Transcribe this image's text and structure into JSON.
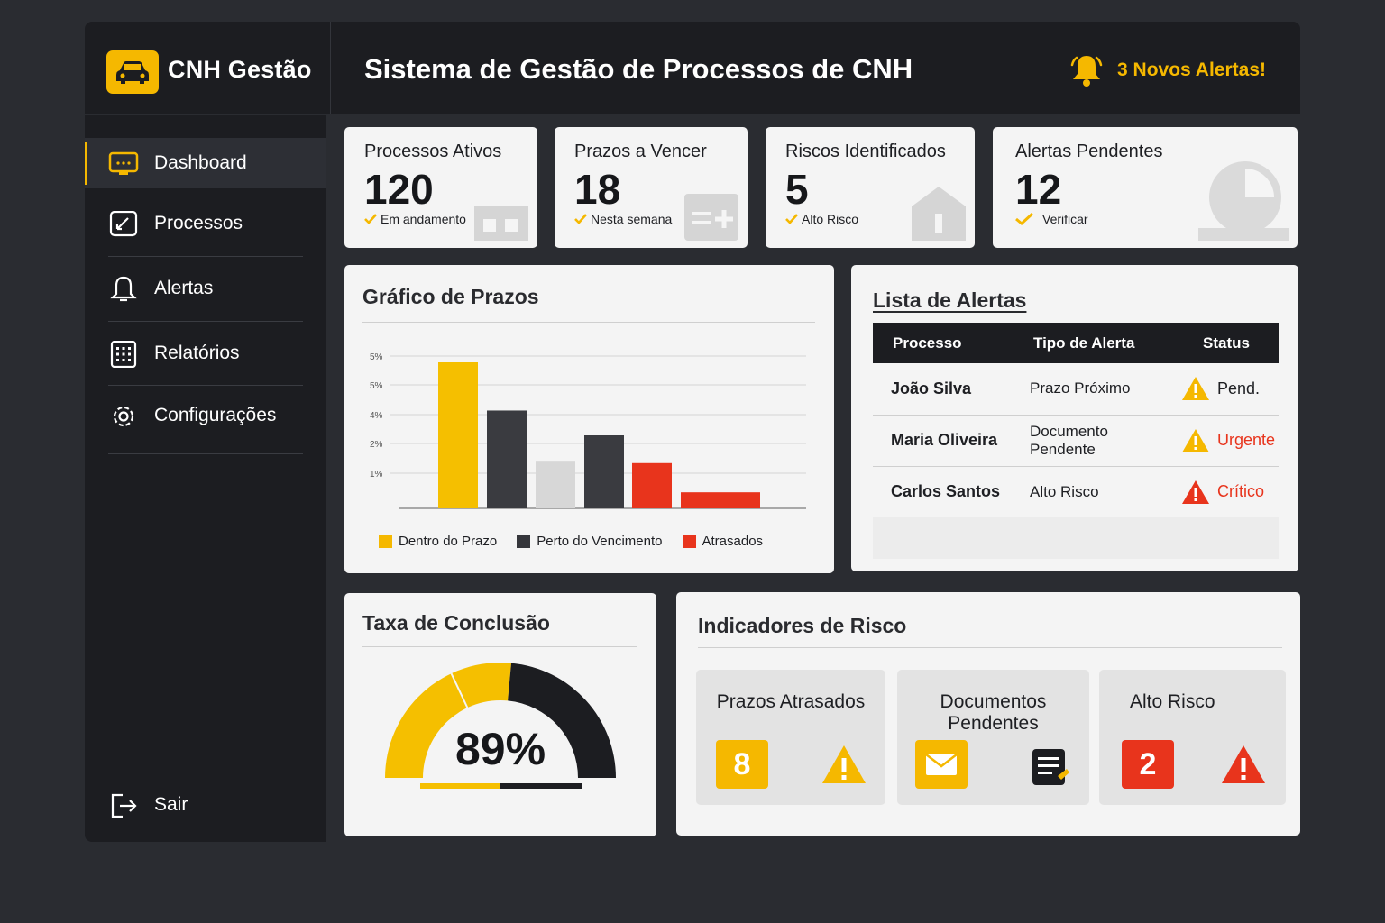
{
  "brand": "CNH Gestão",
  "header": {
    "title": "Sistema de Gestão de Processos de CNH",
    "alerts": "3 Novos Alertas!"
  },
  "sidebar": {
    "items": [
      {
        "label": "Dashboard",
        "icon": "dashboard-icon",
        "active": true
      },
      {
        "label": "Processos",
        "icon": "processos-icon"
      },
      {
        "label": "Alertas",
        "icon": "bell-icon"
      },
      {
        "label": "Relatórios",
        "icon": "reports-icon"
      },
      {
        "label": "Configurações",
        "icon": "gear-icon"
      }
    ],
    "logout": "Sair"
  },
  "stats": [
    {
      "title": "Processos Ativos",
      "value": "120",
      "sub": "Em andamento"
    },
    {
      "title": "Prazos a Vencer",
      "value": "18",
      "sub": "Nesta semana"
    },
    {
      "title": "Riscos Identificados",
      "value": "5",
      "sub": "Alto Risco"
    },
    {
      "title": "Alertas Pendentes",
      "value": "12",
      "sub": "Verificar"
    }
  ],
  "chart_panel": {
    "title": "Gráfico de Prazos"
  },
  "chart_data": {
    "type": "bar",
    "title": "Gráfico de Prazos",
    "y_ticks": [
      "5%",
      "5%",
      "4%",
      "2%",
      "1%"
    ],
    "bars": [
      {
        "series": "Dentro do Prazo",
        "value": 100
      },
      {
        "series": "Perto do Vencimento",
        "value": 67
      },
      {
        "series": "Dentro do Prazo",
        "value": 32
      },
      {
        "series": "Perto do Vencimento",
        "value": 50
      },
      {
        "series": "Atrasados",
        "value": 31
      },
      {
        "series": "Atrasados",
        "value": 11
      }
    ],
    "legend": [
      "Dentro do Prazo",
      "Perto do Vencimento",
      "Atrasados"
    ],
    "colors": {
      "Dentro do Prazo": "#f5bf00",
      "Perto do Vencimento": "#3a3b40",
      "Atrasados": "#e8341c",
      "light": "#d7d7d7"
    },
    "grid": true,
    "legend_position": "bottom"
  },
  "alerts_panel": {
    "title": "Lista de Alertas",
    "columns": [
      "Processo",
      "Tipo de Alerta",
      "Status"
    ],
    "rows": [
      {
        "process": "João Silva",
        "type": "Prazo Próximo",
        "status": "Pend.",
        "level": "warning"
      },
      {
        "process": "Maria Oliveira",
        "type": "Documento Pendente",
        "status": "Urgente",
        "level": "urgent"
      },
      {
        "process": "Carlos Santos",
        "type": "Alto Risco",
        "status": "Crítico",
        "level": "critical"
      }
    ]
  },
  "completion": {
    "title": "Taxa de Conclusão",
    "value": "89%",
    "percent": 89
  },
  "risk": {
    "title": "Indicadores de Risco",
    "items": [
      {
        "title": "Prazos Atrasados",
        "badge": "8",
        "color": "#f5b800"
      },
      {
        "title": "Documentos Pendentes",
        "badge_icon": "envelope-icon",
        "color": "#f5b800"
      },
      {
        "title": "Alto Risco",
        "badge": "2",
        "color": "#e8341c"
      }
    ]
  }
}
